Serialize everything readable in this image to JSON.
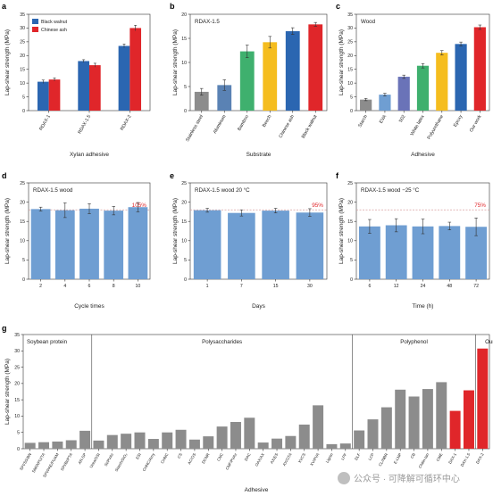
{
  "colors": {
    "blue": "#2b66b1",
    "red": "#e0262a",
    "steel": "#6f9ed2",
    "gray": "#8c8c8c",
    "dash": "#d9a0a0"
  },
  "panels": [
    {
      "id": "a",
      "letter": "a",
      "type": "grouped-bar",
      "ylabel": "Lap-shear strength (MPa)",
      "xlabel": "Xylan adhesive",
      "ylim": [
        0,
        35
      ],
      "yticks": [
        0,
        5,
        10,
        15,
        20,
        25,
        30,
        35
      ],
      "categories": [
        "RDAX-1",
        "RDAX-1.5",
        "RDAX-2"
      ],
      "series": [
        {
          "name": "Black walnut",
          "color": "#2b66b1",
          "values": [
            10.5,
            18,
            23.5
          ],
          "errors": [
            0.6,
            0.5,
            0.7
          ]
        },
        {
          "name": "Chinese ash",
          "color": "#e0262a",
          "values": [
            11.3,
            16.5,
            30
          ],
          "errors": [
            0.6,
            0.7,
            1.0
          ]
        }
      ]
    },
    {
      "id": "b",
      "letter": "b",
      "type": "bar",
      "inner_title": "RDAX-1.5",
      "ylabel": "Lap-shear strength (MPa)",
      "xlabel": "Substrate",
      "ylim": [
        0,
        20
      ],
      "yticks": [
        0,
        5,
        10,
        15,
        20
      ],
      "categories": [
        "Stainless steel",
        "Aluminum",
        "Bamboo",
        "Beech",
        "Chinese ash",
        "Black walnut"
      ],
      "values": [
        3.9,
        5.3,
        12.3,
        14.2,
        16.5,
        17.9
      ],
      "errors": [
        0.7,
        1.1,
        1.3,
        1.2,
        0.7,
        0.4
      ],
      "colors": [
        "#8c8c8c",
        "#5a82b4",
        "#3fb06e",
        "#f5bd1f",
        "#2b66b1",
        "#e0262a"
      ]
    },
    {
      "id": "c",
      "letter": "c",
      "type": "bar",
      "inner_title": "Wood",
      "ylabel": "Lap-shear strength (MPa)",
      "xlabel": "Adhesive",
      "ylim": [
        0,
        35
      ],
      "yticks": [
        0,
        5,
        10,
        15,
        20,
        25,
        30,
        35
      ],
      "categories": [
        "Starch",
        "EVA",
        "502",
        "White latex",
        "Polyurethane",
        "Epoxy",
        "Our work"
      ],
      "values": [
        4,
        5.8,
        12.3,
        16.3,
        21,
        24.2,
        30.3
      ],
      "errors": [
        0.4,
        0.5,
        0.6,
        0.8,
        0.8,
        0.7,
        0.8
      ],
      "colors": [
        "#8c8c8c",
        "#6f9ed2",
        "#6a73b8",
        "#3fb06e",
        "#f5bd1f",
        "#2b66b1",
        "#e0262a"
      ]
    },
    {
      "id": "d",
      "letter": "d",
      "type": "bar",
      "inner_title": "RDAX-1.5 wood",
      "ylabel": "Lap-shear strength (MPa)",
      "xlabel": "Cycle times",
      "ylim": [
        0,
        25
      ],
      "yticks": [
        0,
        5,
        10,
        15,
        20,
        25
      ],
      "categories": [
        "2",
        "4",
        "6",
        "8",
        "10"
      ],
      "values": [
        18.2,
        17.9,
        18.3,
        17.8,
        18.7
      ],
      "errors": [
        0.5,
        1.9,
        1.3,
        1.1,
        1.2
      ],
      "color": "#6f9ed2",
      "ref": 18,
      "annotation": "105%"
    },
    {
      "id": "e",
      "letter": "e",
      "type": "bar",
      "inner_title": "RDAX-1.5 wood 20 °C",
      "ylabel": "Lap-shear strength (MPa)",
      "xlabel": "Days",
      "ylim": [
        0,
        25
      ],
      "yticks": [
        0,
        5,
        10,
        15,
        20,
        25
      ],
      "categories": [
        "1",
        "7",
        "15",
        "30"
      ],
      "values": [
        17.9,
        17.2,
        17.8,
        17.3
      ],
      "errors": [
        0.5,
        0.8,
        0.6,
        1.0
      ],
      "color": "#6f9ed2",
      "ref": 18,
      "annotation": "95%"
    },
    {
      "id": "f",
      "letter": "f",
      "type": "bar",
      "inner_title": "RDAX-1.5 wood −25 °C",
      "ylabel": "Lap-shear strength (MPa)",
      "xlabel": "Time (h)",
      "ylim": [
        0,
        25
      ],
      "yticks": [
        0,
        5,
        10,
        15,
        20,
        25
      ],
      "categories": [
        "6",
        "12",
        "24",
        "48",
        "72"
      ],
      "values": [
        13.7,
        14,
        13.7,
        13.8,
        13.6
      ],
      "errors": [
        1.8,
        1.7,
        1.9,
        1.0,
        2.3
      ],
      "color": "#6f9ed2",
      "ref": 18,
      "annotation": "75%"
    },
    {
      "id": "g",
      "letter": "g",
      "type": "bar",
      "ylabel": "Lap-shear strength (MPa)",
      "xlabel": "Adhesive",
      "ylim": [
        0,
        35
      ],
      "yticks": [
        0,
        5,
        10,
        15,
        20,
        25,
        30,
        35
      ],
      "groups": [
        {
          "label": "Soybean protein",
          "start": 0,
          "end": 5
        },
        {
          "label": "Polysaccharides",
          "start": 5,
          "end": 24
        },
        {
          "label": "Polyphenol",
          "start": 24,
          "end": 33
        },
        {
          "label": "Our work",
          "start": 33,
          "end": 36
        }
      ],
      "categories": [
        "SPI/SS/BN",
        "SM/WPU/TA",
        "SPI/PAE/PUAM",
        "SPI/Bt/PTA",
        "AR-SP",
        "Urea/OSt",
        "St/PVAc",
        "Starch/SiO₂",
        "ESt",
        "CHNC/Amy",
        "CHNC",
        "CS",
        "AC/OS",
        "DCNR",
        "CNC",
        "CNF/PVAc",
        "DAC",
        "OAX/AX",
        "AX/ES",
        "AX/OTA",
        "XVCS",
        "XV/PVA",
        "Lignin",
        "LPF",
        "DLF",
        "LCP",
        "CL/NBR",
        "E-LNP",
        "CB",
        "Chitin-tan",
        "CME",
        "DAX-1",
        "DAX-1.5",
        "DAX-2"
      ],
      "values": [
        1.8,
        2,
        2.2,
        2.6,
        5.5,
        2.5,
        4.2,
        4.6,
        5,
        3,
        5,
        5.8,
        2.8,
        3.8,
        6.8,
        8.2,
        9.5,
        1.9,
        3.1,
        3.9,
        7.4,
        13.3,
        1.4,
        1.6,
        5.6,
        9,
        12.7,
        18.1,
        16,
        18.3,
        20.4,
        11.6,
        17.9,
        30.7
      ],
      "highlight_from": 31,
      "gray": "#8c8c8c",
      "highlight": "#e0262a"
    }
  ],
  "watermark": "公众号 · 可降解可循环中心"
}
